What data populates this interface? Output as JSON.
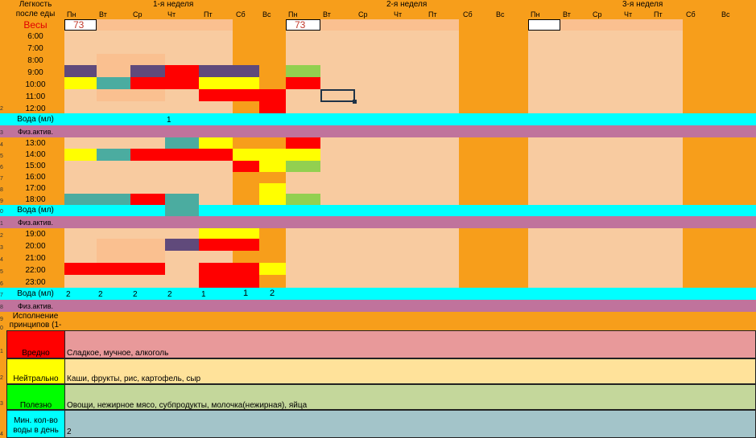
{
  "sheet": {
    "title_line1": "Легкость",
    "title_line2": "после еды",
    "weights_label": "Весы",
    "water_label": "Вода (мл)",
    "activity_label": "Физ.актив.",
    "principles_line1": "Исполнение",
    "principles_line2": "принципов (1-"
  },
  "weeks": [
    "1-я неделя",
    "2-я неделя",
    "3-я неделя"
  ],
  "days": [
    "Пн",
    "Вт",
    "Ср",
    "Чт",
    "Пт",
    "Сб",
    "Вс"
  ],
  "weights": {
    "week1_mon": "73",
    "week2_mon": "73",
    "week3_mon": ""
  },
  "times": [
    "6:00",
    "7:00",
    "8:00",
    "9:00",
    "10:00",
    "11:00",
    "12:00",
    "13:00",
    "14:00",
    "15:00",
    "16:00",
    "17:00",
    "18:00",
    "19:00",
    "20:00",
    "21:00",
    "22:00",
    "23:00"
  ],
  "water_values": {
    "block1": [
      "",
      "",
      "",
      "1",
      "",
      "",
      ""
    ],
    "block3": [
      "2",
      "2",
      "2",
      "2",
      "1",
      "1",
      "2"
    ]
  },
  "legend": [
    {
      "label": "Вредно",
      "text": "Сладкое, мучное, алкоголь",
      "color": "#E8999A",
      "swatch": "#FF0000"
    },
    {
      "label": "Нейтрально",
      "text": "Каши, фрукты, рис, картофель, сыр",
      "color": "#FFE29A",
      "swatch": "#FFFF00"
    },
    {
      "label": "Полезно",
      "text": "Овощи, нежирное мясо, субпродукты, молочка(нежирная), яйца",
      "color": "#C4D79B",
      "swatch": "#00FF00"
    },
    {
      "label_line1": "Мин. кол-во",
      "label_line2": "воды в день",
      "text": "2",
      "color": "#A3C4C9",
      "swatch": "#00FFFF"
    }
  ],
  "colors": {
    "orange": "#F79E1B",
    "peach": "#F8CBA0",
    "light_peach": "#FAC090",
    "cyan": "#00FFFF",
    "mauve": "#C0739C",
    "purple": "#604A7B",
    "teal": "#4BACA0",
    "red": "#FF0000",
    "yellow": "#FFFF00",
    "green": "#92D050"
  },
  "rownums": [
    "2",
    "3",
    "4",
    "5",
    "6",
    "7",
    "8",
    "9",
    "0",
    "1",
    "2",
    "3",
    "4",
    "5",
    "6",
    "7",
    "8",
    "9",
    "0",
    "1",
    "2",
    "3",
    "4",
    "5",
    "6",
    "7",
    "8"
  ]
}
